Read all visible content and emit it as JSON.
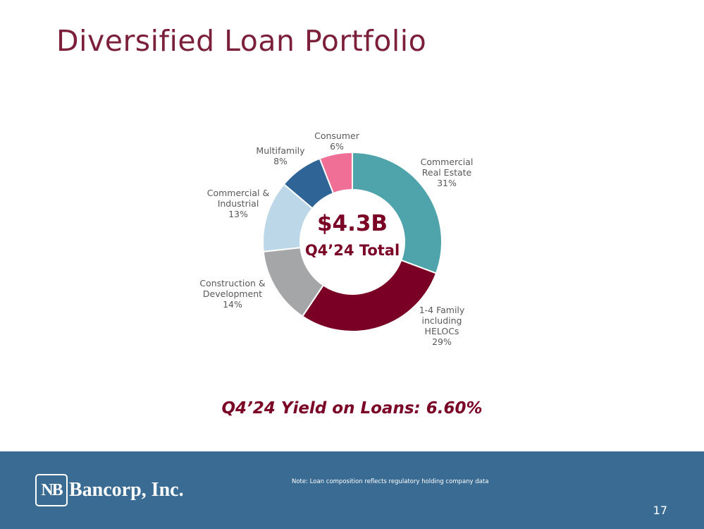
{
  "slide": {
    "title": "Diversified Loan Portfolio",
    "yield_text": "Q4’24 Yield on Loans: 6.60%",
    "colors": {
      "title": "#7b1f3a",
      "accent": "#7a0025",
      "footer_bg": "#3a6b93"
    }
  },
  "chart_data": {
    "type": "pie",
    "donut": true,
    "center_value": "$4.3B",
    "center_caption": "Q4’24 Total",
    "slices": [
      {
        "label_lines": [
          "Commercial",
          "Real Estate"
        ],
        "value": 31,
        "value_label": "31%",
        "color": "#4fa3aa"
      },
      {
        "label_lines": [
          "1-4 Family",
          "including",
          "HELOCs"
        ],
        "value": 29,
        "value_label": "29%",
        "color": "#7a0025"
      },
      {
        "label_lines": [
          "Construction &",
          "Development"
        ],
        "value": 14,
        "value_label": "14%",
        "color": "#a5a6a8"
      },
      {
        "label_lines": [
          "Commercial &",
          "Industrial"
        ],
        "value": 13,
        "value_label": "13%",
        "color": "#bcd8e8"
      },
      {
        "label_lines": [
          "Multifamily"
        ],
        "value": 8,
        "value_label": "8%",
        "color": "#2e6496"
      },
      {
        "label_lines": [
          "Consumer"
        ],
        "value": 6,
        "value_label": "6%",
        "color": "#f06f97"
      }
    ]
  },
  "footer": {
    "logo_mark": "NB",
    "logo_text": "Bancorp, Inc.",
    "note": "Note: Loan composition reflects regulatory holding company data",
    "page_number": "17"
  }
}
